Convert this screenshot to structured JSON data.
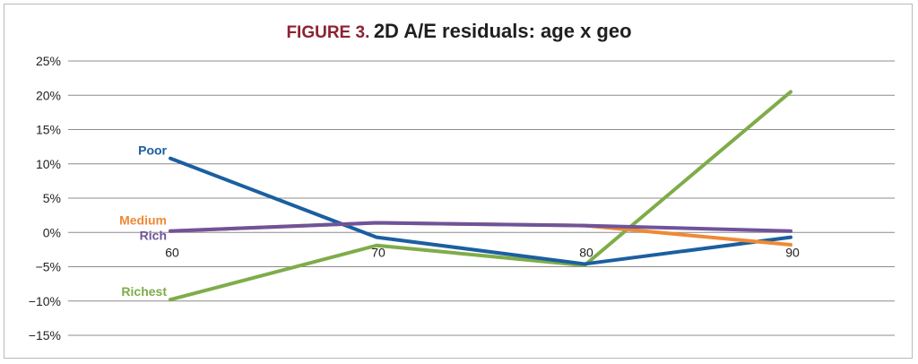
{
  "title": {
    "prefix": "FIGURE 3.",
    "main": "2D A/E residuals: age x geo"
  },
  "chart_data": {
    "type": "line",
    "x": [
      60,
      70,
      80,
      90
    ],
    "x_tick_labels": [
      "60",
      "70",
      "80",
      "90"
    ],
    "y_ticks": [
      25,
      20,
      15,
      10,
      5,
      0,
      -5,
      -10,
      -15
    ],
    "y_tick_labels": [
      "25%",
      "20%",
      "15%",
      "10%",
      "5%",
      "0%",
      "−5%",
      "−10%",
      "−15%"
    ],
    "ylim": [
      -15,
      25
    ],
    "grid": true,
    "series": [
      {
        "name": "Poor",
        "color": "#1b5fa0",
        "values": [
          10.8,
          -0.7,
          -4.6,
          -0.7
        ]
      },
      {
        "name": "Medium",
        "color": "#ee8a35",
        "values": [
          0.2,
          1.4,
          1.0,
          -1.8
        ]
      },
      {
        "name": "Rich",
        "color": "#70539a",
        "values": [
          0.2,
          1.4,
          1.0,
          0.2
        ]
      },
      {
        "name": "Richest",
        "color": "#7fac49",
        "values": [
          -9.8,
          -1.9,
          -4.8,
          20.5
        ]
      }
    ]
  }
}
